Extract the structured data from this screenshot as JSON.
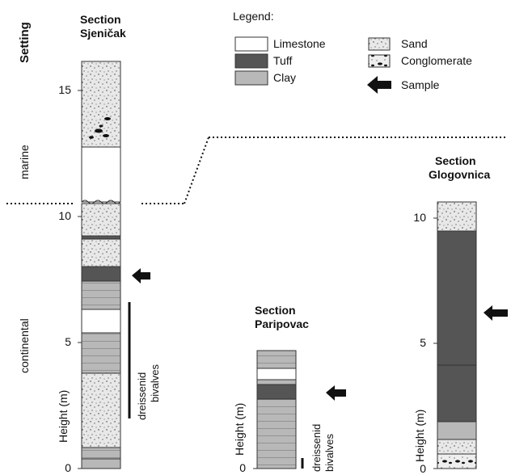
{
  "setting_label": "Setting",
  "setting_marine": "marine",
  "setting_continental": "continental",
  "height_label": "Height (m)",
  "dreissenid_label_1": "dreissenid",
  "dreissenid_label_2": "bivalves",
  "legend": {
    "title": "Legend:",
    "items": [
      "Limestone",
      "Tuff",
      "Clay",
      "Sand",
      "Conglomerate",
      "Sample"
    ]
  },
  "sections": [
    {
      "title_1": "Section",
      "title_2": "Sjeničak",
      "ticks": [
        "0",
        "5",
        "10",
        "15"
      ]
    },
    {
      "title_1": "Section",
      "title_2": "Paripovac",
      "ticks": [
        "0"
      ]
    },
    {
      "title_1": "Section",
      "title_2": "Glogovnica",
      "ticks": [
        "0",
        "5",
        "10"
      ]
    }
  ],
  "colors": {
    "limestone": "#ffffff",
    "tuff": "#555555",
    "clay": "#b8b8b8",
    "sand": "#e6e6e6",
    "outline": "#333333"
  }
}
